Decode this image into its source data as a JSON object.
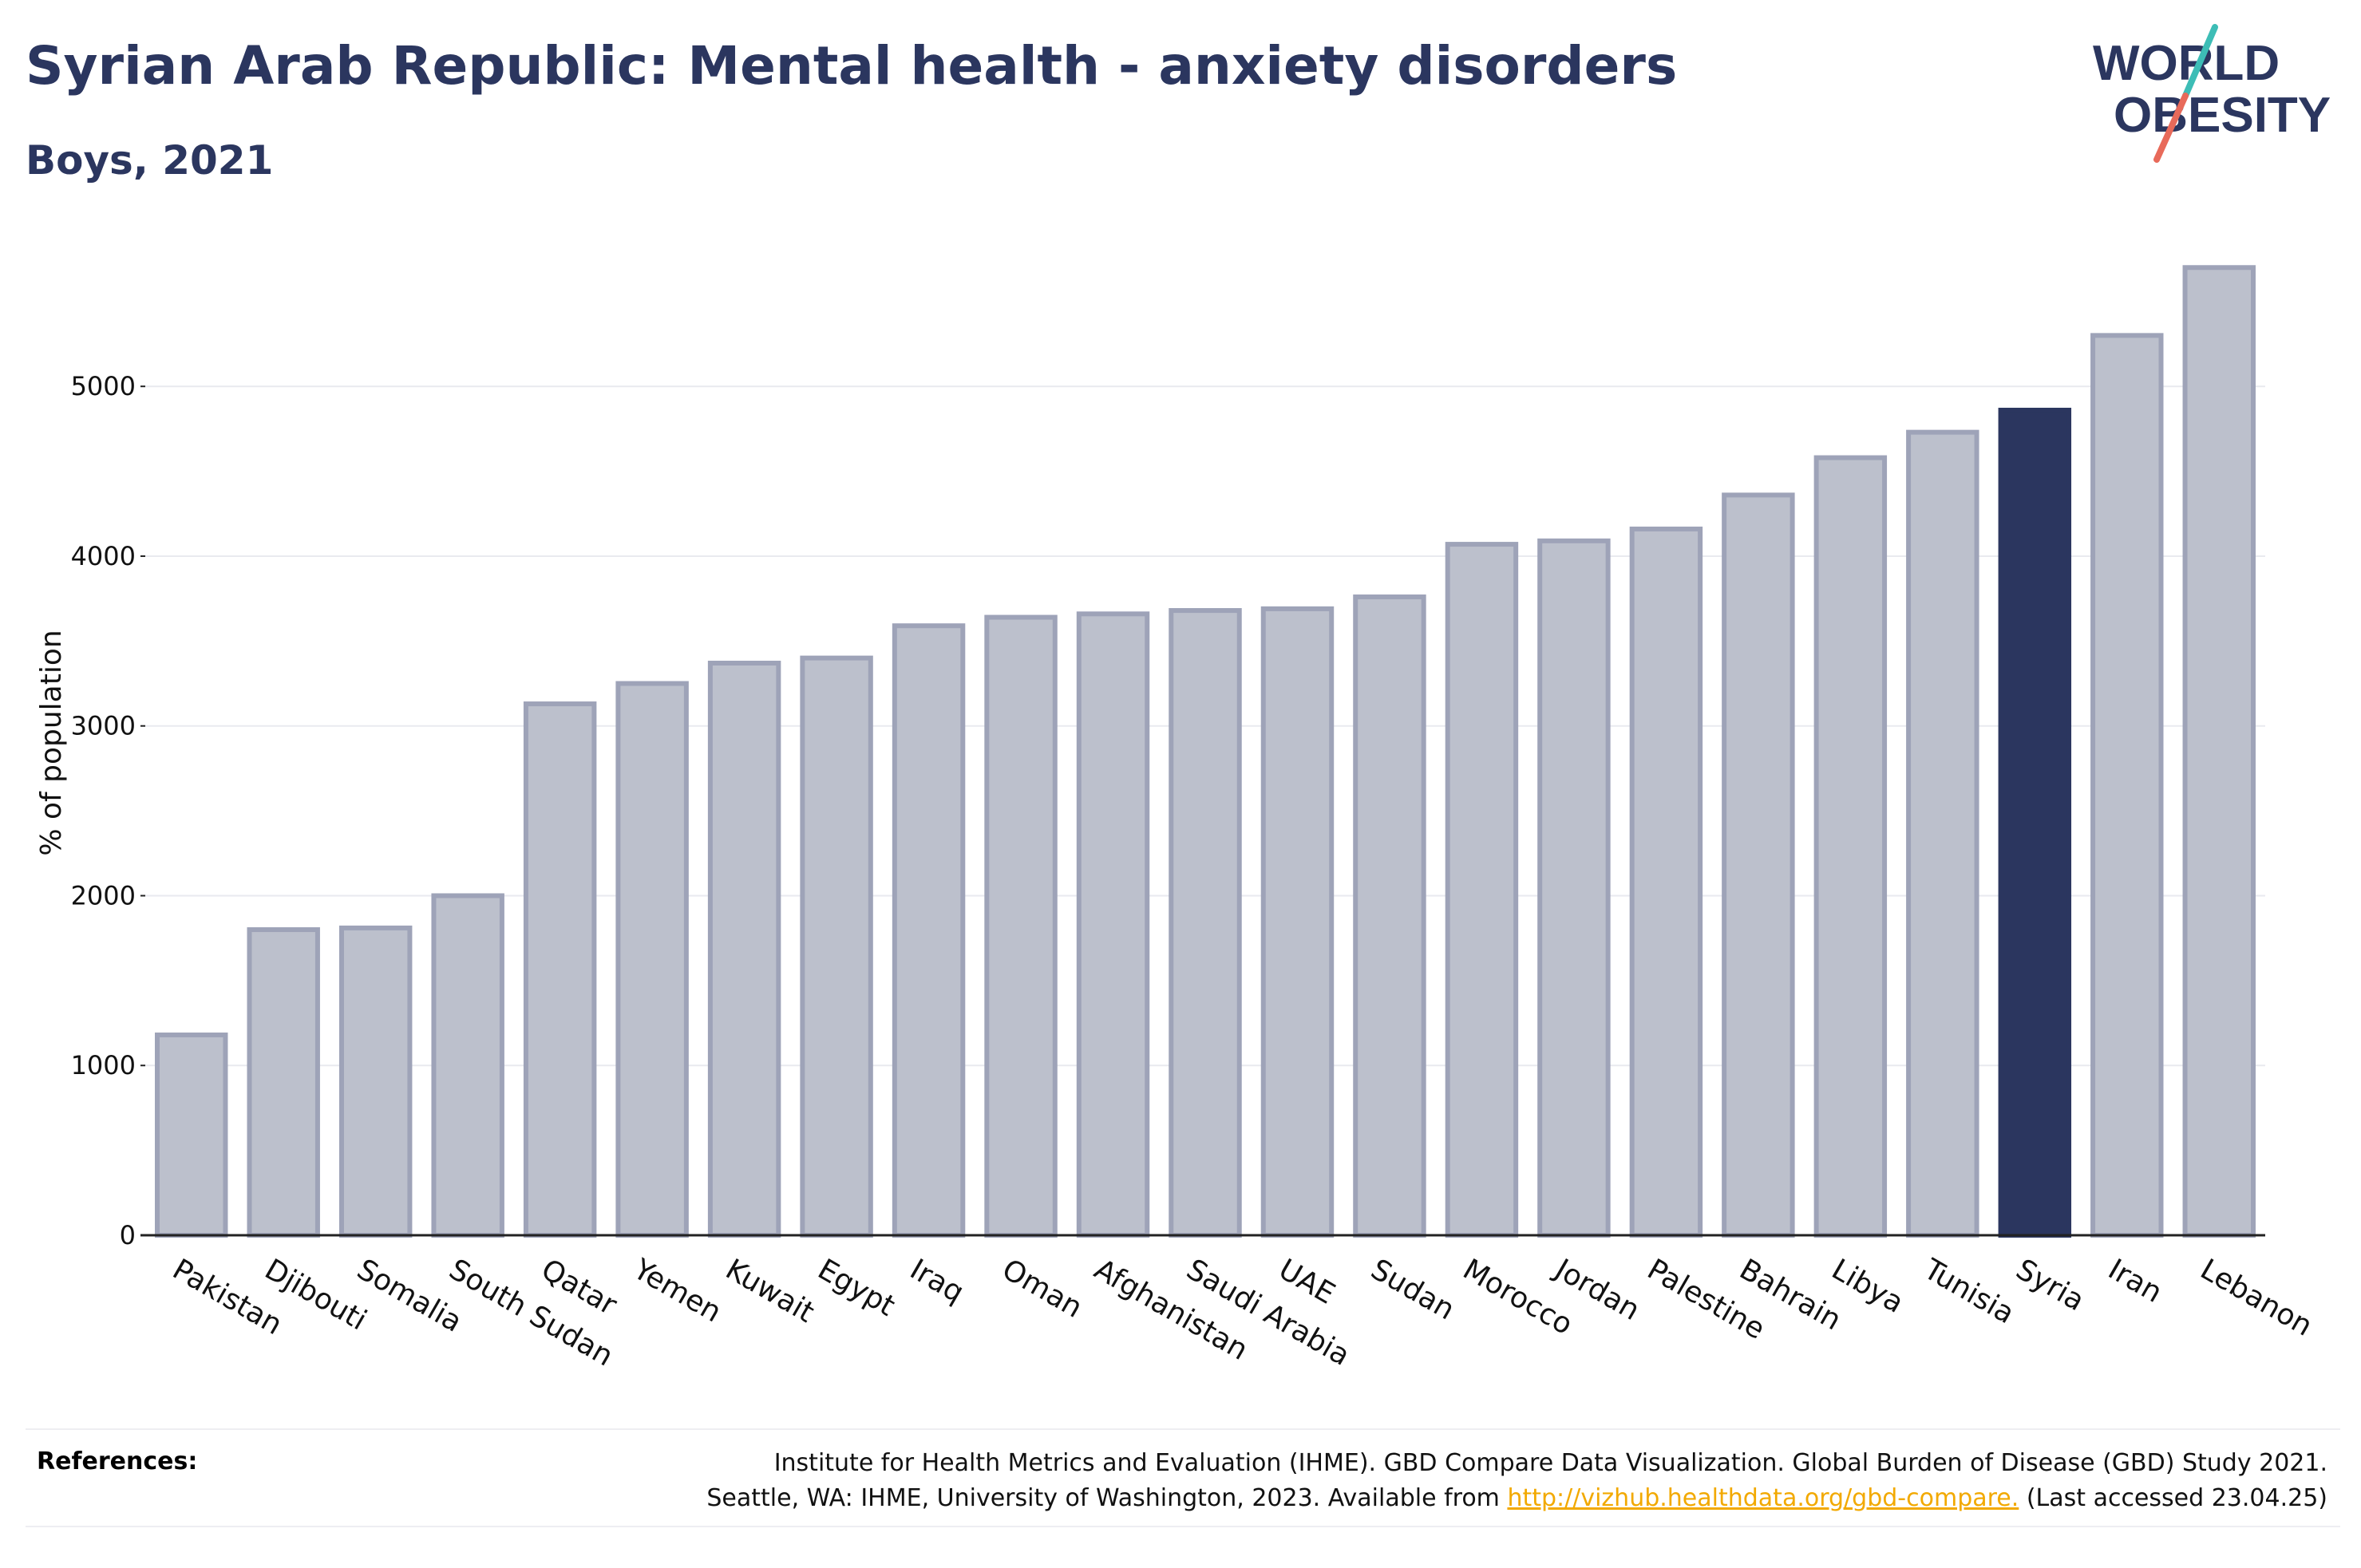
{
  "header": {
    "title": "Syrian Arab Republic: Mental health - anxiety disorders",
    "subtitle": "Boys, 2021"
  },
  "logo": {
    "line1": "WORLD",
    "line2": "OBESITY"
  },
  "colors": {
    "highlight_bar": "#2b365f",
    "other_bar_fill": "#bcc0cc",
    "other_bar_stroke": "#9ea3b8",
    "text": "#2b365f",
    "link": "#f2a900",
    "logo_teal": "#3dbdb6",
    "logo_coral": "#e86a5a"
  },
  "chart_data": {
    "type": "bar",
    "ylabel": "% of population",
    "ylim": [
      0,
      5800
    ],
    "yticks": [
      0,
      1000,
      2000,
      3000,
      4000,
      5000
    ],
    "grid": true,
    "highlight": "Syria",
    "categories": [
      "Pakistan",
      "Djibouti",
      "Somalia",
      "South Sudan",
      "Qatar",
      "Yemen",
      "Kuwait",
      "Egypt",
      "Iraq",
      "Oman",
      "Afghanistan",
      "Saudi Arabia",
      "UAE",
      "Sudan",
      "Morocco",
      "Jordan",
      "Palestine",
      "Bahrain",
      "Libya",
      "Tunisia",
      "Syria",
      "Iran",
      "Lebanon"
    ],
    "values": [
      1180,
      1800,
      1810,
      2000,
      3130,
      3250,
      3370,
      3400,
      3590,
      3640,
      3660,
      3680,
      3690,
      3760,
      4070,
      4090,
      4160,
      4360,
      4580,
      4730,
      4860,
      5300,
      5700
    ]
  },
  "references": {
    "label": "References:",
    "line1": "Institute for Health Metrics and Evaluation (IHME). GBD Compare Data Visualization. Global Burden of Disease (GBD) Study 2021.",
    "line2_prefix": "Seattle, WA: IHME, University of Washington, 2023. Available from ",
    "link_text": "http://vizhub.healthdata.org/gbd-compare.",
    "line2_suffix": " (Last accessed 23.04.25)"
  }
}
